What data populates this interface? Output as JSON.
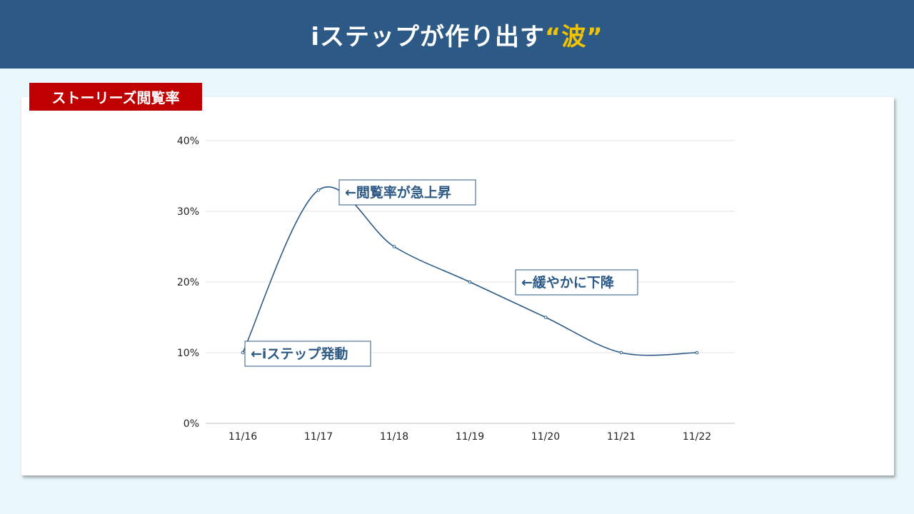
{
  "header": {
    "title_main": "iステップが作り出す",
    "title_accent": "“波”"
  },
  "badge": {
    "label": "ストーリーズ閲覧率"
  },
  "colors": {
    "header_bg": "#2c5985",
    "accent": "#f2c300",
    "badge_bg": "#c00000",
    "line": "#2c5985",
    "page_bg": "#eaf7fc"
  },
  "chart_data": {
    "type": "line",
    "categories": [
      "11/16",
      "11/17",
      "11/18",
      "11/19",
      "11/20",
      "11/21",
      "11/22"
    ],
    "values": [
      10,
      33,
      25,
      20,
      15,
      10,
      10
    ],
    "y_unit": "%",
    "ylim": [
      0,
      40
    ],
    "yticks": [
      "0%",
      "10%",
      "20%",
      "30%",
      "40%"
    ],
    "grid": true,
    "smooth": true,
    "annotations": [
      {
        "text": "←iステップ発動",
        "point_index": 0
      },
      {
        "text": "←閲覧率が急上昇",
        "point_index": 1
      },
      {
        "text": "←緩やかに下降",
        "point_index": 3
      }
    ]
  }
}
